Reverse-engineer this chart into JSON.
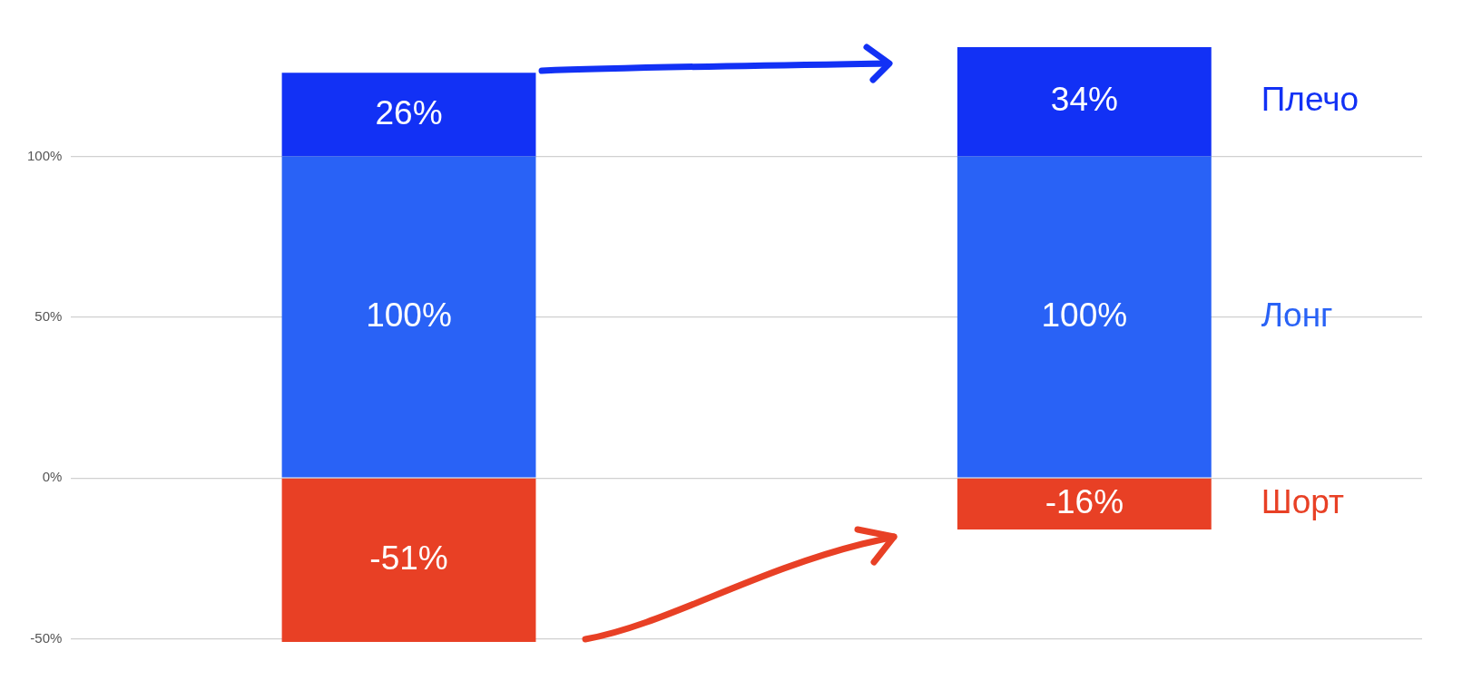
{
  "chart_data": {
    "type": "bar",
    "stacked": true,
    "categories": [
      null,
      null
    ],
    "series": [
      {
        "name": "Шорт",
        "color": "#e84025",
        "values": [
          -51,
          -16
        ],
        "value_labels": [
          "-51%",
          "-16%"
        ]
      },
      {
        "name": "Лонг",
        "color": "#2962f6",
        "values": [
          100,
          100
        ],
        "value_labels": [
          "100%",
          "100%"
        ]
      },
      {
        "name": "Плечо",
        "color": "#1231f5",
        "values": [
          26,
          34
        ],
        "value_labels": [
          "26%",
          "34%"
        ]
      }
    ],
    "ylim": [
      -51,
      134
    ],
    "yticks": [
      {
        "value": -50,
        "label": "-50%"
      },
      {
        "value": 0,
        "label": "0%"
      },
      {
        "value": 50,
        "label": "50%"
      },
      {
        "value": 100,
        "label": "100%"
      }
    ],
    "grid": "y",
    "legend": false,
    "tick_labels": "y"
  }
}
